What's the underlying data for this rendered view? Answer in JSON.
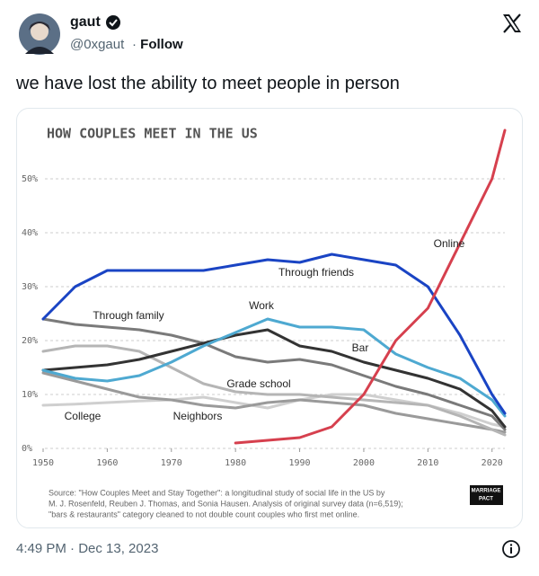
{
  "tweet": {
    "name": "gaut",
    "handle": "@0xgaut",
    "follow": "Follow",
    "text": "we have lost the ability to meet people in person",
    "timestamp": "4:49 PM · Dec 13, 2023"
  },
  "chart_data": {
    "type": "line",
    "title": "HOW COUPLES MEET IN THE US",
    "x": [
      1950,
      1955,
      1960,
      1965,
      1970,
      1975,
      1980,
      1985,
      1990,
      1995,
      2000,
      2005,
      2010,
      2015,
      2020,
      2022
    ],
    "series": [
      {
        "name": "College",
        "color": "#cfcfcf",
        "values": [
          8,
          8.2,
          8.5,
          8.8,
          9,
          9.5,
          8.5,
          7.5,
          9,
          10,
          10,
          9,
          8,
          6.5,
          4.5,
          4
        ]
      },
      {
        "name": "Neighbors",
        "color": "#9a9a9a",
        "values": [
          14,
          12.5,
          11,
          9.5,
          9,
          8,
          7.5,
          8.5,
          9,
          8.5,
          8,
          6.5,
          5.5,
          4.5,
          3.5,
          3
        ]
      },
      {
        "name": "Grade school",
        "color": "#b5b5b5",
        "values": [
          18,
          19,
          19,
          18,
          15,
          12,
          10.5,
          10,
          10,
          9.5,
          9,
          8.5,
          8,
          6,
          3.5,
          2.5
        ]
      },
      {
        "name": "Through family",
        "color": "#7a7a7a",
        "values": [
          24,
          23,
          22.5,
          22,
          21,
          19.5,
          17,
          16,
          16.5,
          15.5,
          13.5,
          11.5,
          10,
          8,
          6,
          3.5
        ]
      },
      {
        "name": "Bar",
        "color": "#333333",
        "values": [
          14.5,
          15,
          15.5,
          16.5,
          18,
          19.5,
          21,
          22,
          19,
          18,
          16,
          14.5,
          13,
          11,
          7,
          4
        ]
      },
      {
        "name": "Work",
        "color": "#4ea9d1",
        "values": [
          14.5,
          13,
          12.5,
          13.5,
          16,
          19,
          21.5,
          24,
          22.5,
          22.5,
          22,
          17.5,
          15,
          13,
          9,
          6
        ]
      },
      {
        "name": "Through friends",
        "color": "#1a44c4",
        "values": [
          24,
          30,
          33,
          33,
          33,
          33,
          34,
          35,
          34.5,
          36,
          35,
          34,
          30,
          21,
          10,
          6.5
        ]
      },
      {
        "name": "Online",
        "color": "#d6404e",
        "values": [
          null,
          null,
          null,
          null,
          null,
          null,
          1,
          1.5,
          2,
          4,
          10,
          20,
          26,
          38,
          50,
          59
        ]
      }
    ],
    "xlim": [
      1950,
      2022
    ],
    "ylim": [
      0,
      60
    ],
    "xticks": [
      1950,
      1960,
      1970,
      1980,
      1990,
      2000,
      2010,
      2020
    ],
    "yticks": [
      {
        "value": 0,
        "label": "0%"
      },
      {
        "value": 10,
        "label": "10%"
      },
      {
        "value": 20,
        "label": "20%"
      },
      {
        "value": 30,
        "label": "30%"
      },
      {
        "value": 40,
        "label": "40%"
      },
      {
        "value": 50,
        "label": "50%"
      }
    ],
    "grid": true,
    "source": [
      "Source: \"How Couples Meet and Stay Together\": a longitudinal study of social life in the US by",
      "M. J. Rosenfeld, Reuben J. Thomas, and Sonia Hausen. Analysis of original survey data (n=6,519);",
      "\"bars & restaurants\" category cleaned to not double count couples who first met online."
    ],
    "logo": [
      "MARRIAGE",
      "PACT"
    ]
  }
}
